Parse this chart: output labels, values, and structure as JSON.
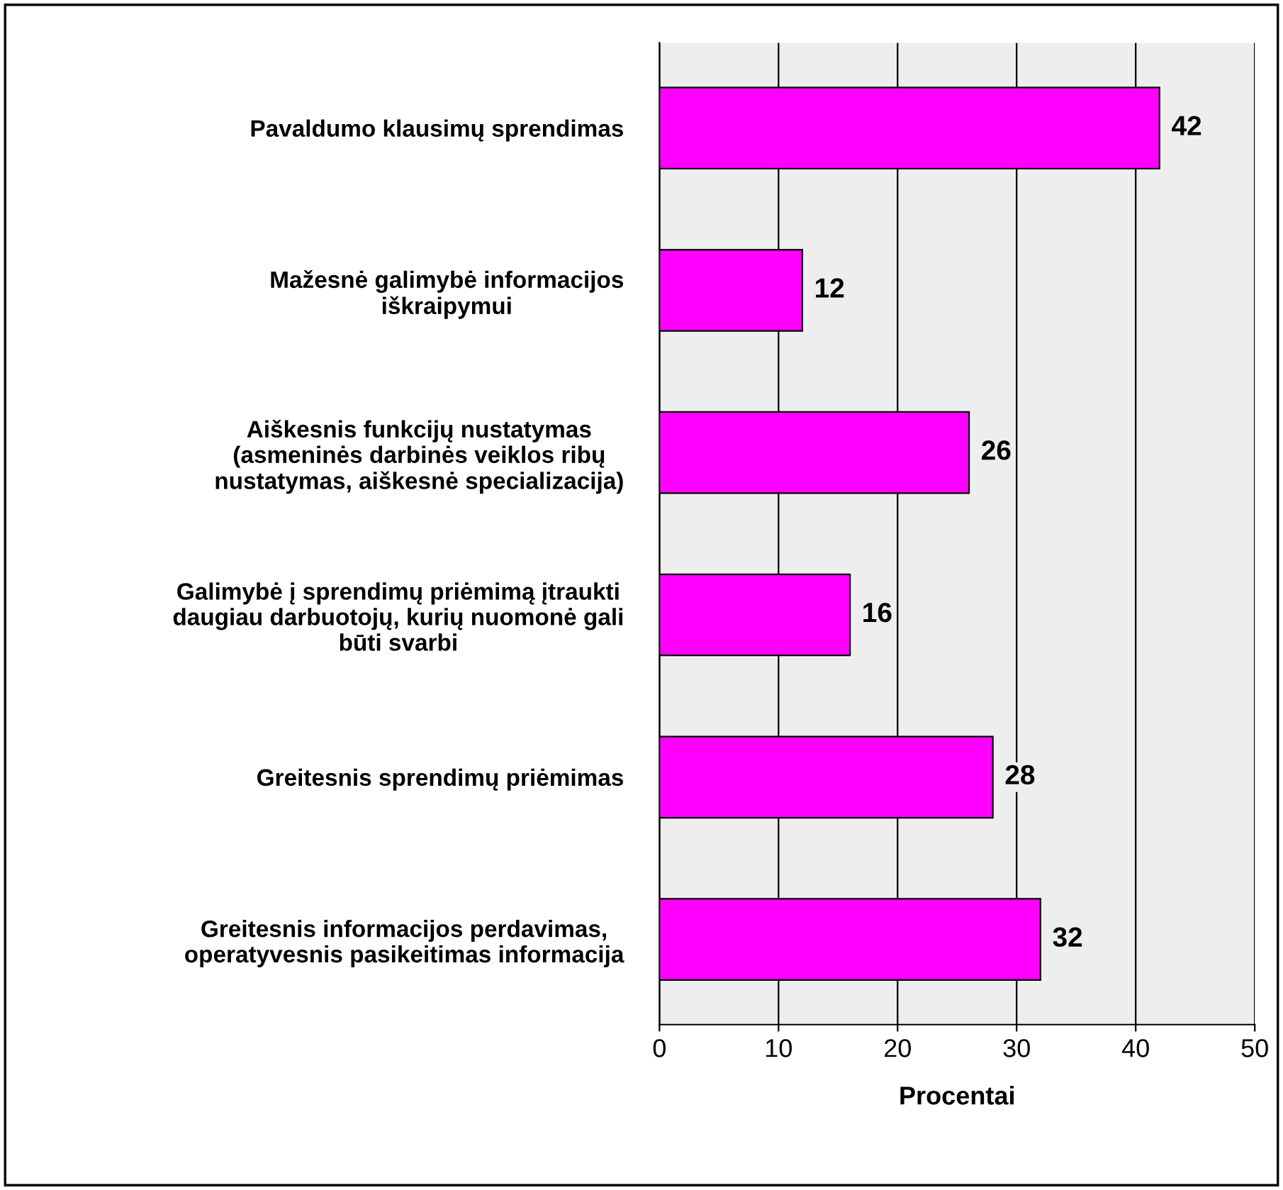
{
  "chart_data": {
    "type": "bar",
    "orientation": "horizontal",
    "categories": [
      "Pavaldumo klausimų sprendimas",
      "Mažesnė galimybė informacijos\niškraipymui",
      "Aiškesnis funkcijų nustatymas\n(asmeninės darbinės veiklos ribų\nnustatymas, aiškesnė specializacija)",
      "Galimybė į sprendimų priėmimą įtraukti\ndaugiau darbuotojų, kurių nuomonė gali\nbūti svarbi",
      "Greitesnis sprendimų priėmimas",
      "Greitesnis informacijos perdavimas,\noperatyvesnis pasikeitimas informacija"
    ],
    "values": [
      42,
      12,
      26,
      16,
      28,
      32
    ],
    "color": "#ff00ff",
    "xlabel": "Procentai",
    "xlim": [
      0,
      50
    ],
    "xticks": [
      0,
      10,
      20,
      30,
      40,
      50
    ],
    "grid": "x",
    "data_labels": true
  }
}
